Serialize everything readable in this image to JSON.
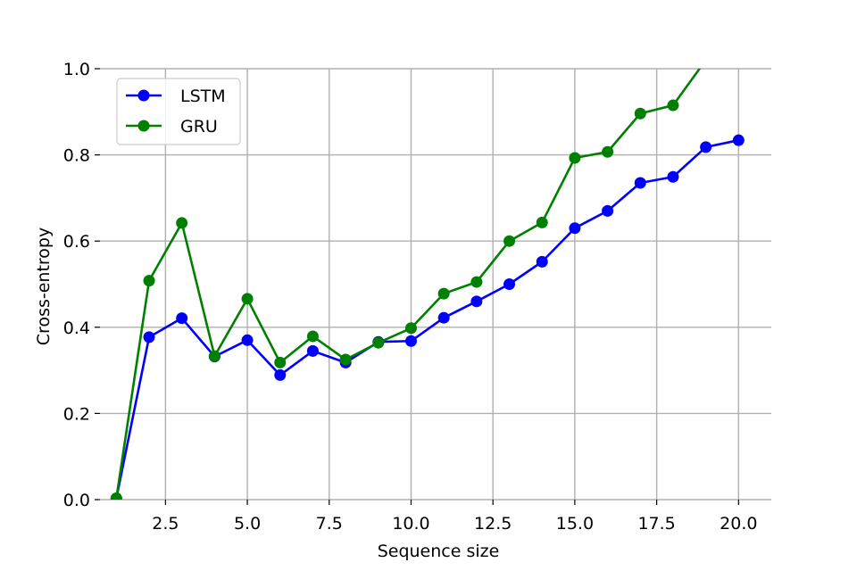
{
  "chart_data": {
    "type": "line",
    "xlabel": "Sequence size",
    "ylabel": "Cross-entropy",
    "xlim": [
      0.5,
      21
    ],
    "ylim": [
      0,
      1.0
    ],
    "xticks": [
      2.5,
      5.0,
      7.5,
      10.0,
      12.5,
      15.0,
      17.5,
      20.0
    ],
    "xtick_labels": [
      "2.5",
      "5.0",
      "7.5",
      "10.0",
      "12.5",
      "15.0",
      "17.5",
      "20.0"
    ],
    "yticks": [
      0.0,
      0.2,
      0.4,
      0.6,
      0.8,
      1.0
    ],
    "ytick_labels": [
      "0.0",
      "0.2",
      "0.4",
      "0.6",
      "0.8",
      "1.0"
    ],
    "grid": true,
    "legend_position": "top-left",
    "series": [
      {
        "name": "LSTM",
        "color": "#0000ff",
        "x": [
          1,
          2,
          3,
          4,
          5,
          6,
          7,
          8,
          9,
          10,
          11,
          12,
          13,
          14,
          15,
          16,
          17,
          18,
          19,
          20
        ],
        "values": [
          0.003,
          0.377,
          0.421,
          0.332,
          0.37,
          0.289,
          0.345,
          0.318,
          0.366,
          0.368,
          0.422,
          0.46,
          0.5,
          0.552,
          0.63,
          0.67,
          0.735,
          0.749,
          0.818,
          0.834
        ]
      },
      {
        "name": "GRU",
        "color": "#008000",
        "x": [
          1,
          2,
          3,
          4,
          5,
          6,
          7,
          8,
          9,
          10,
          11,
          12,
          13,
          14,
          15,
          16,
          17,
          18,
          19
        ],
        "values": [
          0.003,
          0.508,
          0.642,
          0.333,
          0.466,
          0.318,
          0.379,
          0.325,
          0.364,
          0.398,
          0.478,
          0.505,
          0.6,
          0.643,
          0.793,
          0.807,
          0.896,
          0.915,
          1.02
        ]
      }
    ]
  }
}
